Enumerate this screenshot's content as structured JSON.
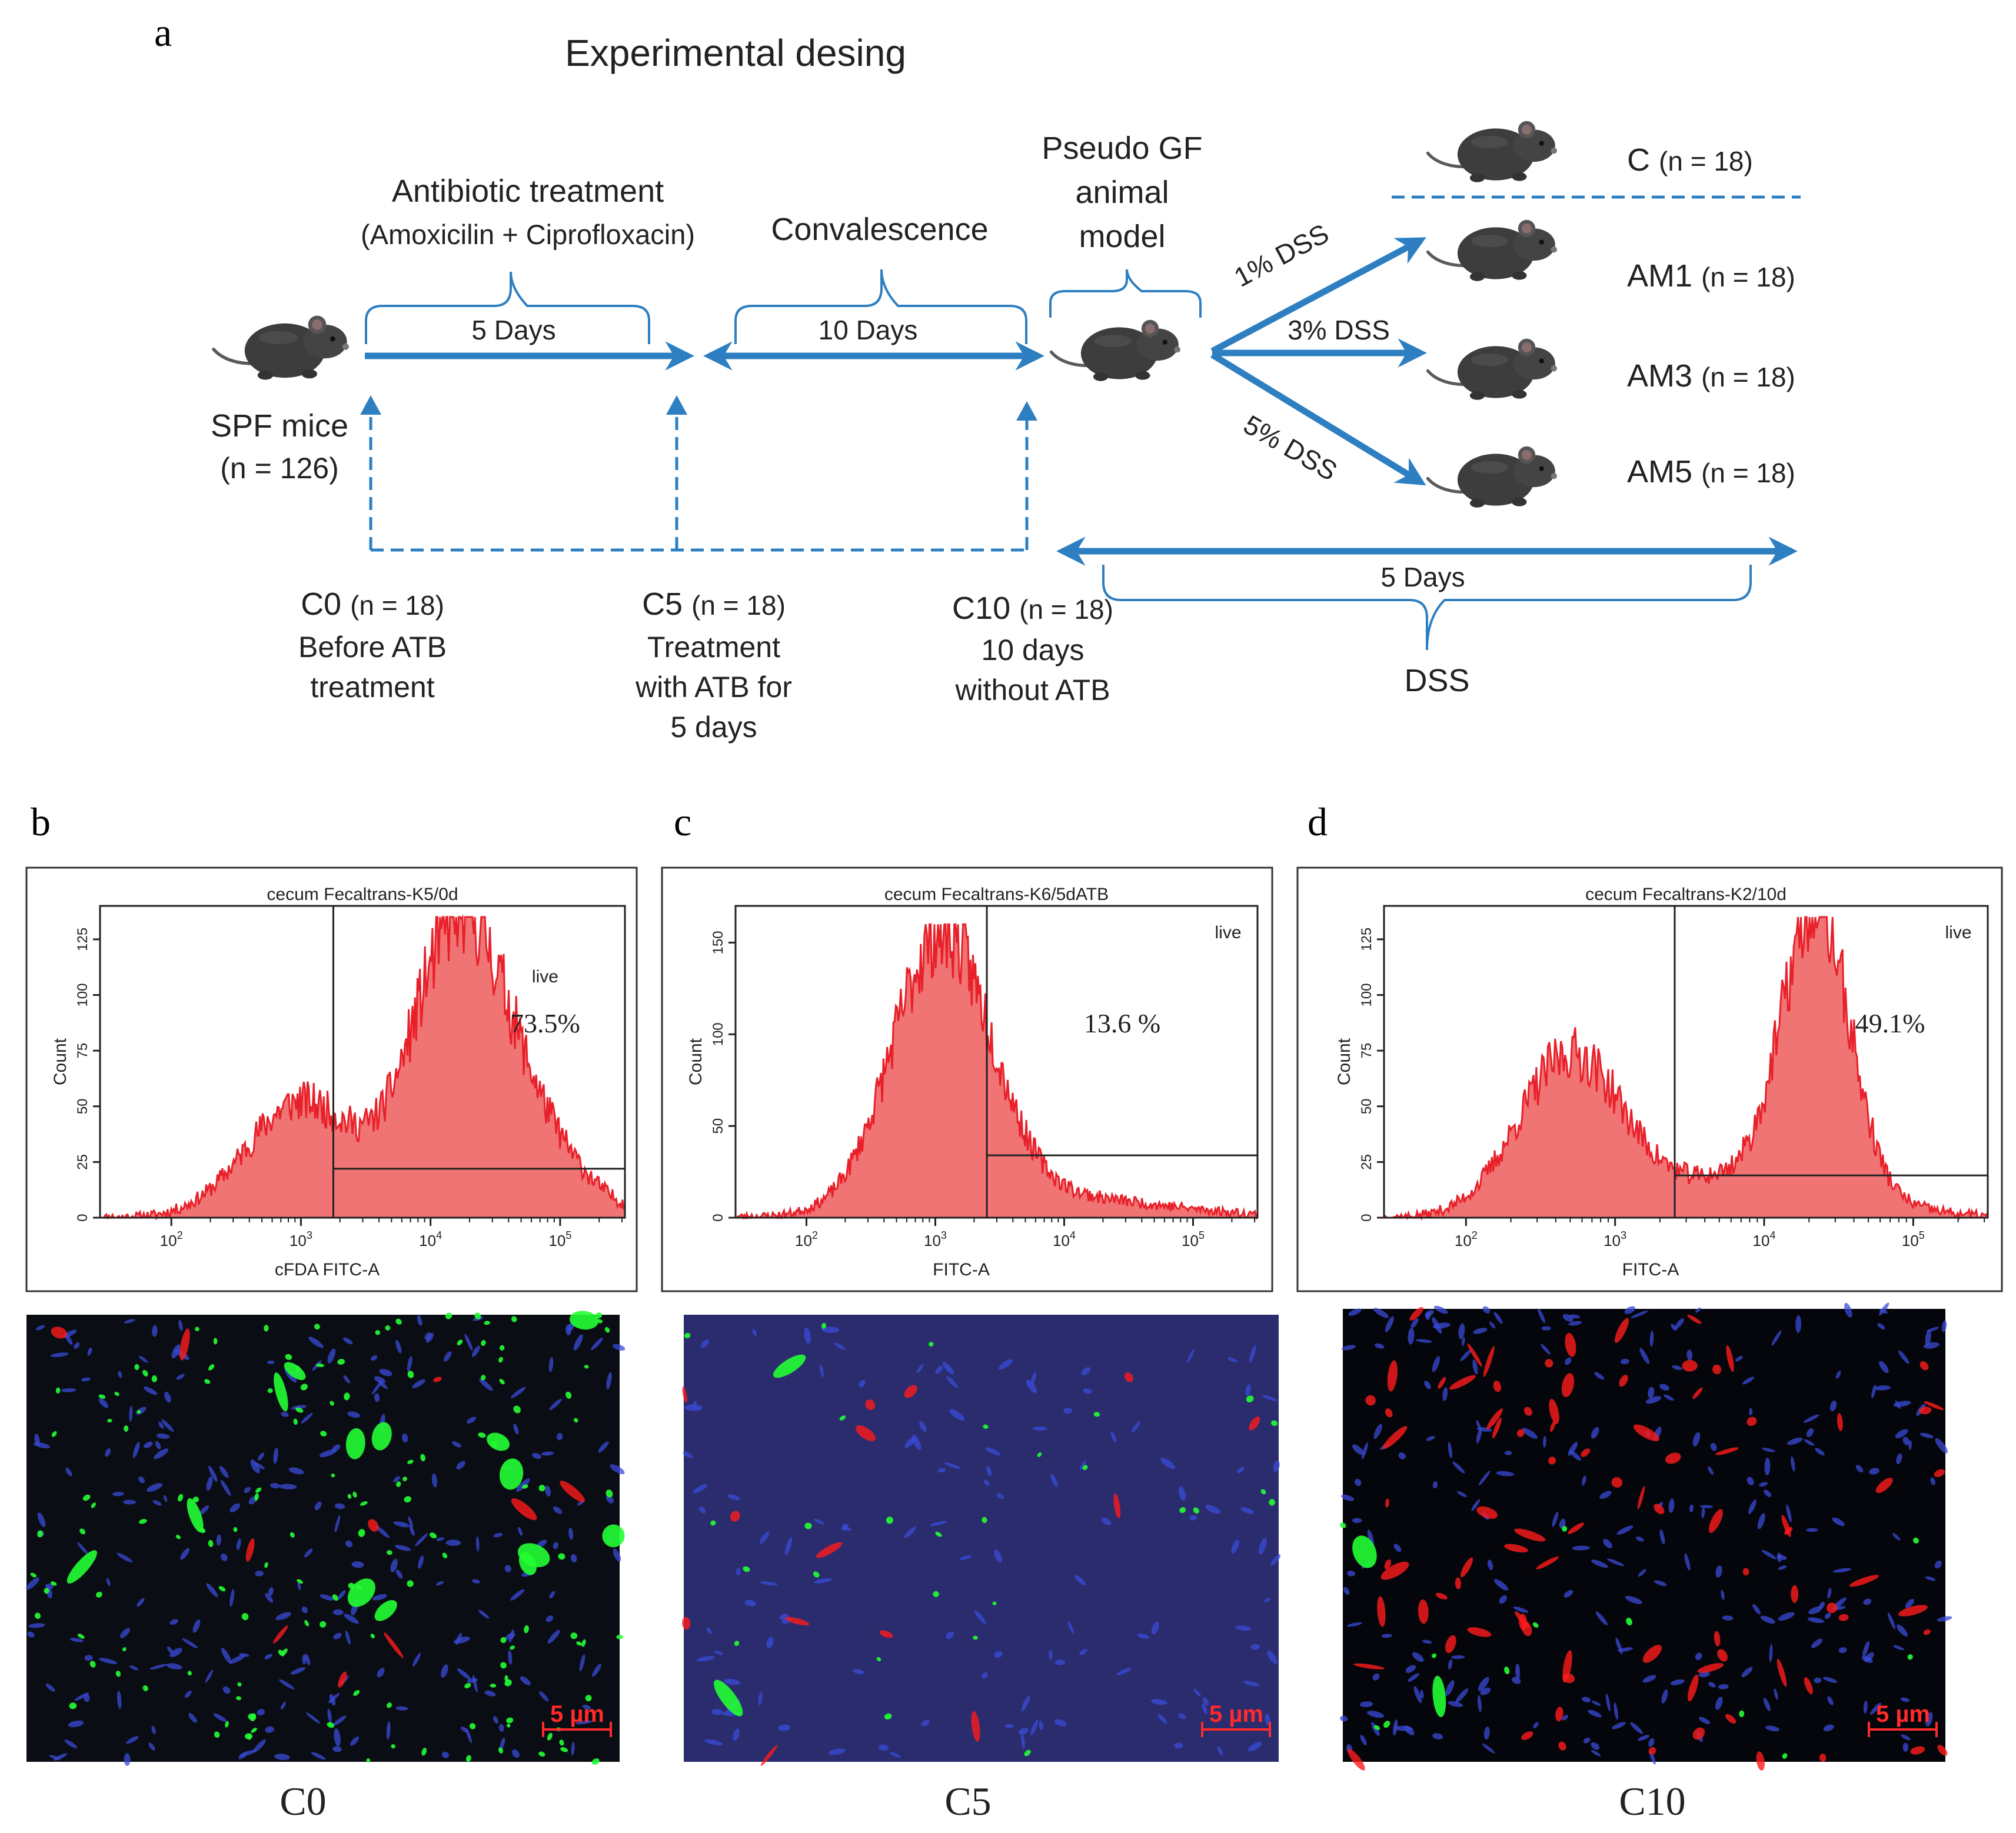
{
  "panel_a": {
    "letter": "a",
    "title": "Experimental desing",
    "antibiotic_label": "Antibiotic treatment",
    "antibiotic_drugs": "(Amoxicilin + Ciprofloxacin)",
    "antibiotic_duration": "5 Days",
    "convalescence_label": "Convalescence",
    "convalescence_duration": "10 Days",
    "pseudo_gf_line1": "Pseudo GF",
    "pseudo_gf_line2": "animal",
    "pseudo_gf_line3": "model",
    "spf_label": "SPF mice",
    "spf_n": "(n = 126)",
    "dss_1": "1% DSS",
    "dss_3": "3% DSS",
    "dss_5": "5% DSS",
    "groups": [
      {
        "name": "C",
        "n": "(n = 18)"
      },
      {
        "name": "AM1",
        "n": "(n = 18)"
      },
      {
        "name": "AM3",
        "n": "(n = 18)"
      },
      {
        "name": "AM5",
        "n": "(n = 18)"
      }
    ],
    "dss_duration": "5 Days",
    "dss_label": "DSS",
    "sampling": [
      {
        "name": "C0",
        "n": "(n = 18)",
        "desc": [
          "Before ATB",
          "treatment"
        ]
      },
      {
        "name": "C5",
        "n": "(n = 18)",
        "desc": [
          "Treatment",
          "with ATB for",
          "5 days"
        ]
      },
      {
        "name": "C10",
        "n": "(n = 18)",
        "desc": [
          "10 days",
          "without ATB"
        ]
      }
    ],
    "colors": {
      "arrow": "#2e7fc1",
      "mouse": "#3d3d3d"
    }
  },
  "chart_data": [
    {
      "type": "area",
      "panel_letter": "b",
      "title": "cecum Fecaltrans-K5/0d",
      "xlabel": "cFDA FITC-A",
      "ylabel": "Count",
      "x_scale": "log",
      "x_ticks": [
        "10^2",
        "10^3",
        "10^4",
        "10^5"
      ],
      "y_ticks": [
        "0",
        "25",
        "50",
        "75",
        "100",
        "125"
      ],
      "ylim": [
        0,
        140
      ],
      "gate_label": "live",
      "gate_percent": "73.5%",
      "gate_x_log": 3.25,
      "gate_y": 22,
      "peaks": [
        {
          "center_log": 3.0,
          "width": 0.42,
          "height": 52
        },
        {
          "center_log": 4.2,
          "width": 0.35,
          "height": 123
        },
        {
          "center_log": 4.75,
          "width": 0.4,
          "height": 35
        }
      ],
      "peak_max": 135,
      "image_label": "C0",
      "scale_bar": "5 µm"
    },
    {
      "type": "area",
      "panel_letter": "c",
      "title": "cecum Fecaltrans-K6/5dATB",
      "xlabel": "FITC-A",
      "ylabel": "Count",
      "x_scale": "log",
      "x_ticks": [
        "10^2",
        "10^3",
        "10^4",
        "10^5"
      ],
      "y_ticks": [
        "0",
        "50",
        "100",
        "150"
      ],
      "ylim": [
        0,
        170
      ],
      "gate_label": "live",
      "gate_percent": "13.6 %",
      "gate_x_log": 3.4,
      "gate_y": 34,
      "peaks": [
        {
          "center_log": 3.05,
          "width": 0.38,
          "height": 148
        },
        {
          "center_log": 3.8,
          "width": 0.9,
          "height": 12
        }
      ],
      "peak_max": 160,
      "image_label": "C5",
      "scale_bar": "5 µm"
    },
    {
      "type": "area",
      "panel_letter": "d",
      "title": "cecum Fecaltrans-K2/10d",
      "xlabel": "FITC-A",
      "ylabel": "Count",
      "x_scale": "log",
      "x_ticks": [
        "10^2",
        "10^3",
        "10^4",
        "10^5"
      ],
      "y_ticks": [
        "0",
        "25",
        "50",
        "75",
        "100",
        "125"
      ],
      "ylim": [
        0,
        140
      ],
      "gate_label": "live",
      "gate_percent": "49.1%",
      "gate_x_log": 3.4,
      "gate_y": 19,
      "peaks": [
        {
          "center_log": 2.7,
          "width": 0.35,
          "height": 72
        },
        {
          "center_log": 4.35,
          "width": 0.22,
          "height": 125
        },
        {
          "center_log": 4.0,
          "width": 0.6,
          "height": 20
        }
      ],
      "peak_max": 135,
      "image_label": "C10",
      "scale_bar": "5 µm"
    }
  ]
}
